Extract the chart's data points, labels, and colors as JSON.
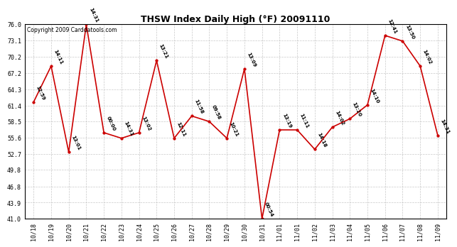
{
  "title": "THSW Index Daily High (°F) 20091110",
  "copyright": "Copyright 2009 Carddatools.com",
  "x_labels": [
    "10/18",
    "10/19",
    "10/20",
    "10/21",
    "10/22",
    "10/23",
    "10/24",
    "10/25",
    "10/26",
    "10/27",
    "10/28",
    "10/29",
    "10/30",
    "10/31",
    "11/01",
    "11/01",
    "11/02",
    "11/03",
    "11/04",
    "11/05",
    "11/06",
    "11/07",
    "11/08",
    "11/09"
  ],
  "y_values": [
    62.0,
    68.5,
    53.0,
    76.0,
    56.5,
    55.5,
    56.5,
    69.5,
    55.5,
    59.5,
    58.5,
    55.5,
    68.0,
    41.0,
    57.0,
    57.0,
    53.5,
    57.5,
    59.0,
    61.5,
    74.0,
    73.0,
    68.5,
    56.0
  ],
  "annotations": [
    "12:59",
    "14:11",
    "13:01",
    "14:31",
    "00:00",
    "14:31",
    "13:02",
    "13:21",
    "12:11",
    "11:58",
    "09:58",
    "10:21",
    "13:09",
    "00:54",
    "13:19",
    "11:11",
    "14:18",
    "14:02",
    "13:20",
    "14:10",
    "12:41",
    "13:50",
    "14:02",
    "14:31"
  ],
  "ylim": [
    41.0,
    76.0
  ],
  "yticks": [
    41.0,
    43.9,
    46.8,
    49.8,
    52.7,
    55.6,
    58.5,
    61.4,
    64.3,
    67.2,
    70.2,
    73.1,
    76.0
  ],
  "line_color": "#cc0000",
  "marker_color": "#cc0000",
  "bg_color": "#ffffff",
  "plot_bg_color": "#ffffff",
  "grid_color": "#bbbbbb",
  "title_fontsize": 9,
  "tick_fontsize": 6,
  "annotation_fontsize": 5,
  "copyright_fontsize": 5.5
}
